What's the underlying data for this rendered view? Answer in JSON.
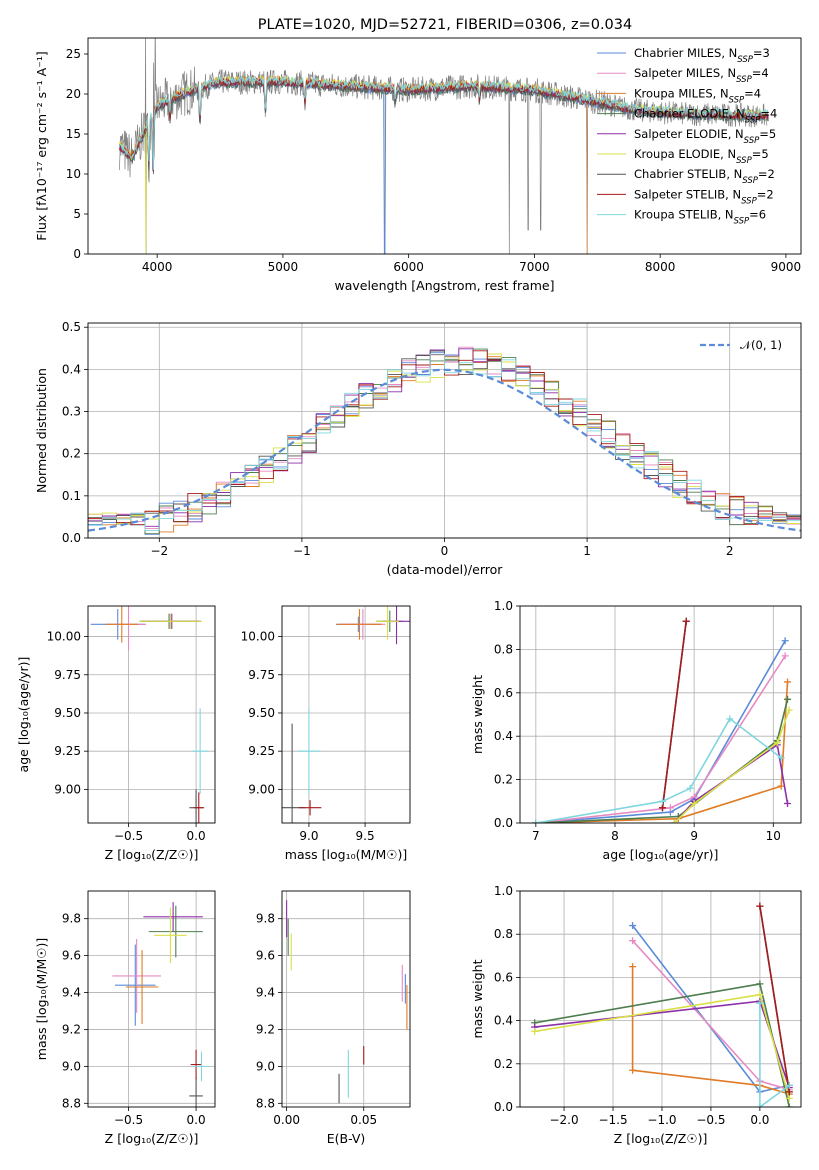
{
  "colors": {
    "chabrier_miles": "#5b8bd9",
    "salpeter_miles": "#e68ac3",
    "kroupa_miles": "#e07b26",
    "chabrier_elodie": "#4e7d4e",
    "salpeter_elodie": "#8d2fa8",
    "kroupa_elodie": "#d9e048",
    "chabrier_stelib": "#555555",
    "salpeter_stelib": "#a61c1c",
    "kroupa_stelib": "#7fd6de",
    "data_spectrum": "#7f7f7f"
  },
  "chart_data": [
    {
      "id": "spectrum",
      "type": "line",
      "title": "PLATE=1020, MJD=52721, FIBERID=0306, z=0.034",
      "xlabel": "wavelength [Angstrom, rest frame]",
      "ylabel": "Flux [fλ10⁻¹⁷ erg cm⁻² s⁻¹ A⁻¹]",
      "xlim": [
        3450,
        9120
      ],
      "ylim": [
        0,
        27
      ],
      "xticks": [
        "4000",
        "5000",
        "6000",
        "7000",
        "8000",
        "9000"
      ],
      "yticks": [
        "0",
        "5",
        "10",
        "15",
        "20",
        "25"
      ],
      "legend_position": "upper right",
      "legend": [
        {
          "label": "Chabrier MILES, N",
          "sub": "SSP",
          "suffix": "=3",
          "color_key": "chabrier_miles"
        },
        {
          "label": "Salpeter MILES, N",
          "sub": "SSP",
          "suffix": "=4",
          "color_key": "salpeter_miles"
        },
        {
          "label": "Kroupa MILES, N",
          "sub": "SSP",
          "suffix": "=4",
          "color_key": "kroupa_miles"
        },
        {
          "label": "Chabrier ELODIE, N",
          "sub": "SSP",
          "suffix": "=4",
          "color_key": "chabrier_elodie"
        },
        {
          "label": "Salpeter ELODIE, N",
          "sub": "SSP",
          "suffix": "=5",
          "color_key": "salpeter_elodie"
        },
        {
          "label": "Kroupa ELODIE, N",
          "sub": "SSP",
          "suffix": "=5",
          "color_key": "kroupa_elodie"
        },
        {
          "label": "Chabrier STELIB, N",
          "sub": "SSP",
          "suffix": "=2",
          "color_key": "chabrier_stelib"
        },
        {
          "label": "Salpeter STELIB, N",
          "sub": "SSP",
          "suffix": "=2",
          "color_key": "salpeter_stelib"
        },
        {
          "label": "Kroupa STELIB, N",
          "sub": "SSP",
          "suffix": "=6",
          "color_key": "kroupa_stelib"
        }
      ],
      "continuum": [
        [
          3700,
          13.5
        ],
        [
          3800,
          12
        ],
        [
          3900,
          15.5
        ],
        [
          4000,
          18.5
        ],
        [
          4200,
          20
        ],
        [
          4500,
          21.5
        ],
        [
          5000,
          21.5
        ],
        [
          5500,
          21
        ],
        [
          6000,
          20.5
        ],
        [
          6500,
          21
        ],
        [
          7000,
          20.5
        ],
        [
          7500,
          19
        ],
        [
          7800,
          18
        ],
        [
          8200,
          17.5
        ],
        [
          8800,
          17.3
        ]
      ],
      "dips": [
        [
          3934,
          11
        ],
        [
          3969,
          10
        ],
        [
          4102,
          17
        ],
        [
          4340,
          16
        ],
        [
          4861,
          17
        ],
        [
          5175,
          18.5
        ],
        [
          5893,
          19
        ],
        [
          6563,
          19.3
        ]
      ],
      "drops": [
        [
          5810,
          0
        ],
        [
          6800,
          0
        ],
        [
          6950,
          3
        ],
        [
          7050,
          3
        ],
        [
          7420,
          0
        ],
        [
          3910,
          0
        ]
      ]
    },
    {
      "id": "residuals",
      "type": "histogram",
      "xlabel": "(data-model)/error",
      "ylabel": "Normed distribution",
      "xlim": [
        -2.5,
        2.5
      ],
      "ylim": [
        0,
        0.51
      ],
      "xticks": [
        "−2",
        "−1",
        "0",
        "1",
        "2"
      ],
      "yticks": [
        "0.0",
        "0.1",
        "0.2",
        "0.3",
        "0.4",
        "0.5"
      ],
      "legend": [
        {
          "label": "𝒩(0, 1)",
          "style": "dashed",
          "color_key": "chabrier_miles"
        }
      ],
      "bin_width": 0.1
    },
    {
      "id": "age_vs_Z",
      "type": "errorbar",
      "xlabel": "Z [log₁₀(Z/Z☉)]",
      "ylabel": "age  [log₁₀(age/yr)]",
      "xlim": [
        -0.8,
        0.14
      ],
      "ylim": [
        8.78,
        10.2
      ],
      "xticks": [
        "−0.5",
        "0.0"
      ],
      "yticks": [
        "9.00",
        "9.25",
        "9.50",
        "9.75",
        "10.00"
      ],
      "points": [
        {
          "model": "chabrier_miles",
          "x": -0.58,
          "y": 10.08,
          "xerr": 0.2,
          "yerr": 0.1
        },
        {
          "model": "salpeter_miles",
          "x": -0.5,
          "y": 10.08,
          "xerr": 0.13,
          "yerr": 0.17
        },
        {
          "model": "kroupa_miles",
          "x": -0.55,
          "y": 10.08,
          "xerr": 0.12,
          "yerr": 0.12
        },
        {
          "model": "chabrier_elodie",
          "x": -0.2,
          "y": 10.1,
          "xerr": 0.22,
          "yerr": 0.05
        },
        {
          "model": "salpeter_elodie",
          "x": -0.18,
          "y": 10.1,
          "xerr": 0.22,
          "yerr": 0.05
        },
        {
          "model": "kroupa_elodie",
          "x": -0.19,
          "y": 10.1,
          "xerr": 0.23,
          "yerr": 0.05
        },
        {
          "model": "chabrier_stelib",
          "x": 0.0,
          "y": 8.88,
          "xerr": 0.05,
          "yerr": 0.12
        },
        {
          "model": "salpeter_stelib",
          "x": 0.02,
          "y": 8.88,
          "xerr": 0.04,
          "yerr": 0.1
        },
        {
          "model": "kroupa_stelib",
          "x": 0.03,
          "y": 9.25,
          "xerr": 0.06,
          "yerr": 0.28
        }
      ]
    },
    {
      "id": "age_vs_mass",
      "type": "errorbar",
      "xlabel": "mass [log₁₀(M/M☉)]",
      "xlim": [
        8.76,
        9.9
      ],
      "ylim": [
        8.78,
        10.2
      ],
      "xticks": [
        "9.0",
        "9.5"
      ],
      "yticks": [
        "9.00",
        "9.25",
        "9.50",
        "9.75",
        "10.00"
      ],
      "points": [
        {
          "model": "chabrier_miles",
          "x": 9.44,
          "y": 10.08,
          "xerr": 0.2,
          "yerr": 0.05
        },
        {
          "model": "salpeter_miles",
          "x": 9.48,
          "y": 10.08,
          "xerr": 0.2,
          "yerr": 0.1
        },
        {
          "model": "kroupa_miles",
          "x": 9.45,
          "y": 10.08,
          "xerr": 0.2,
          "yerr": 0.1
        },
        {
          "model": "chabrier_elodie",
          "x": 9.72,
          "y": 10.1,
          "xerr": 0.12,
          "yerr": 0.07
        },
        {
          "model": "salpeter_elodie",
          "x": 9.78,
          "y": 10.1,
          "xerr": 0.12,
          "yerr": 0.15
        },
        {
          "model": "kroupa_elodie",
          "x": 9.7,
          "y": 10.1,
          "xerr": 0.1,
          "yerr": 0.12
        },
        {
          "model": "chabrier_stelib",
          "x": 8.85,
          "y": 8.88,
          "xerr": 0.12,
          "yerr": 0.55
        },
        {
          "model": "salpeter_stelib",
          "x": 9.01,
          "y": 8.88,
          "xerr": 0.1,
          "yerr": 0.05
        },
        {
          "model": "kroupa_stelib",
          "x": 9.0,
          "y": 9.25,
          "xerr": 0.1,
          "yerr": 0.28
        }
      ]
    },
    {
      "id": "weight_vs_age",
      "type": "line",
      "xlabel": "age  [log₁₀(age/yr)]",
      "ylabel": "mass weight",
      "xlim": [
        6.8,
        10.35
      ],
      "ylim": [
        0,
        1.0
      ],
      "xticks": [
        "7",
        "8",
        "9",
        "10"
      ],
      "yticks": [
        "0.0",
        "0.2",
        "0.4",
        "0.6",
        "0.8",
        "1.0"
      ],
      "series": [
        {
          "model": "chabrier_miles",
          "x": [
            7.0,
            8.7,
            9.0,
            10.15
          ],
          "y": [
            0.0,
            0.05,
            0.11,
            0.84
          ]
        },
        {
          "model": "salpeter_miles",
          "x": [
            7.0,
            8.7,
            9.0,
            10.15
          ],
          "y": [
            0.0,
            0.07,
            0.12,
            0.77
          ]
        },
        {
          "model": "kroupa_miles",
          "x": [
            7.0,
            8.8,
            10.1,
            10.18
          ],
          "y": [
            0.0,
            0.02,
            0.17,
            0.65
          ]
        },
        {
          "model": "chabrier_elodie",
          "x": [
            7.0,
            8.8,
            10.05,
            10.18
          ],
          "y": [
            0.0,
            0.03,
            0.38,
            0.57
          ]
        },
        {
          "model": "salpeter_elodie",
          "x": [
            8.75,
            9.0,
            10.05,
            10.18
          ],
          "y": [
            0.0,
            0.1,
            0.36,
            0.09
          ]
        },
        {
          "model": "kroupa_elodie",
          "x": [
            8.75,
            9.0,
            10.05,
            10.2
          ],
          "y": [
            0.0,
            0.09,
            0.37,
            0.52
          ]
        },
        {
          "model": "chabrier_stelib",
          "x": [
            8.6,
            8.9
          ],
          "y": [
            0.07,
            0.93
          ]
        },
        {
          "model": "salpeter_stelib",
          "x": [
            8.6,
            8.9
          ],
          "y": [
            0.07,
            0.93
          ]
        },
        {
          "model": "kroupa_stelib",
          "x": [
            7.0,
            8.6,
            8.95,
            9.45,
            10.1
          ],
          "y": [
            0.0,
            0.1,
            0.16,
            0.48,
            0.3
          ]
        }
      ]
    },
    {
      "id": "mass_vs_Z",
      "type": "errorbar",
      "xlabel": "Z [log₁₀(Z/Z☉)]",
      "ylabel": "mass [log₁₀(M/M☉)]",
      "xlim": [
        -0.8,
        0.14
      ],
      "ylim": [
        8.78,
        9.95
      ],
      "xticks": [
        "−0.5",
        "0.0"
      ],
      "yticks": [
        "8.8",
        "9.0",
        "9.2",
        "9.4",
        "9.6",
        "9.8"
      ],
      "points": [
        {
          "model": "chabrier_miles",
          "x": -0.45,
          "y": 9.44,
          "xerr": 0.15,
          "yerr": 0.22
        },
        {
          "model": "salpeter_miles",
          "x": -0.44,
          "y": 9.49,
          "xerr": 0.18,
          "yerr": 0.2
        },
        {
          "model": "kroupa_miles",
          "x": -0.4,
          "y": 9.43,
          "xerr": 0.12,
          "yerr": 0.2
        },
        {
          "model": "chabrier_elodie",
          "x": -0.15,
          "y": 9.73,
          "xerr": 0.2,
          "yerr": 0.14
        },
        {
          "model": "salpeter_elodie",
          "x": -0.17,
          "y": 9.81,
          "xerr": 0.22,
          "yerr": 0.08
        },
        {
          "model": "kroupa_elodie",
          "x": -0.19,
          "y": 9.71,
          "xerr": 0.12,
          "yerr": 0.15
        },
        {
          "model": "chabrier_stelib",
          "x": 0.0,
          "y": 8.84,
          "xerr": 0.05,
          "yerr": 0.1
        },
        {
          "model": "salpeter_stelib",
          "x": 0.0,
          "y": 9.01,
          "xerr": 0.04,
          "yerr": 0.08
        },
        {
          "model": "kroupa_stelib",
          "x": 0.04,
          "y": 9.0,
          "xerr": 0.06,
          "yerr": 0.08
        }
      ]
    },
    {
      "id": "mass_vs_ebv",
      "type": "errorbar",
      "xlabel": "E(B-V)",
      "xlim": [
        -0.003,
        0.08
      ],
      "ylim": [
        8.78,
        9.95
      ],
      "xticks": [
        "0.00",
        "0.05"
      ],
      "yticks": [
        "8.8",
        "9.0",
        "9.2",
        "9.4",
        "9.6",
        "9.8"
      ],
      "points": [
        {
          "model": "chabrier_miles",
          "x": 0.077,
          "y": 9.42,
          "xerr": 0.0,
          "yerr": 0.08
        },
        {
          "model": "salpeter_miles",
          "x": 0.075,
          "y": 9.45,
          "xerr": 0.0,
          "yerr": 0.1
        },
        {
          "model": "kroupa_miles",
          "x": 0.078,
          "y": 9.32,
          "xerr": 0.0,
          "yerr": 0.12
        },
        {
          "model": "chabrier_elodie",
          "x": 0.001,
          "y": 9.7,
          "xerr": 0.0,
          "yerr": 0.1
        },
        {
          "model": "salpeter_elodie",
          "x": 0.0,
          "y": 9.8,
          "xerr": 0.0,
          "yerr": 0.1
        },
        {
          "model": "kroupa_elodie",
          "x": 0.003,
          "y": 9.62,
          "xerr": 0.0,
          "yerr": 0.1
        },
        {
          "model": "chabrier_stelib",
          "x": 0.034,
          "y": 8.88,
          "xerr": 0.0,
          "yerr": 0.08
        },
        {
          "model": "salpeter_stelib",
          "x": 0.05,
          "y": 9.06,
          "xerr": 0.0,
          "yerr": 0.05
        },
        {
          "model": "kroupa_stelib",
          "x": 0.04,
          "y": 8.96,
          "xerr": 0.0,
          "yerr": 0.13
        }
      ]
    },
    {
      "id": "weight_vs_Z",
      "type": "line",
      "xlabel": "Z [log₁₀(Z/Z☉)]",
      "ylabel": "mass weight",
      "xlim": [
        -2.45,
        0.42
      ],
      "ylim": [
        0,
        1.0
      ],
      "xticks": [
        "−2.0",
        "−1.5",
        "−1.0",
        "−0.5",
        "0.0"
      ],
      "yticks": [
        "0.0",
        "0.2",
        "0.4",
        "0.6",
        "0.8",
        "1.0"
      ],
      "series": [
        {
          "model": "chabrier_miles",
          "x": [
            -1.3,
            0.0,
            0.3
          ],
          "y": [
            0.84,
            0.07,
            0.1
          ]
        },
        {
          "model": "salpeter_miles",
          "x": [
            -1.3,
            0.0,
            0.3
          ],
          "y": [
            0.77,
            0.12,
            0.08
          ]
        },
        {
          "model": "kroupa_miles",
          "x": [
            -1.3,
            -1.3,
            0.0,
            0.3
          ],
          "y": [
            0.65,
            0.17,
            0.1,
            0.06
          ]
        },
        {
          "model": "chabrier_elodie",
          "x": [
            -2.3,
            0.0,
            0.3
          ],
          "y": [
            0.39,
            0.57,
            0.0
          ]
        },
        {
          "model": "salpeter_elodie",
          "x": [
            -2.3,
            0.0,
            0.3
          ],
          "y": [
            0.37,
            0.49,
            0.09
          ]
        },
        {
          "model": "kroupa_elodie",
          "x": [
            -2.3,
            0.0,
            0.3
          ],
          "y": [
            0.35,
            0.52,
            0.04
          ]
        },
        {
          "model": "chabrier_stelib",
          "x": [
            0.0,
            0.3
          ],
          "y": [
            0.93,
            0.07
          ]
        },
        {
          "model": "salpeter_stelib",
          "x": [
            0.0,
            0.3
          ],
          "y": [
            0.93,
            0.07
          ]
        },
        {
          "model": "kroupa_stelib",
          "x": [
            0.0,
            0.0,
            0.3
          ],
          "y": [
            0.48,
            0.0,
            0.1
          ]
        }
      ]
    }
  ]
}
